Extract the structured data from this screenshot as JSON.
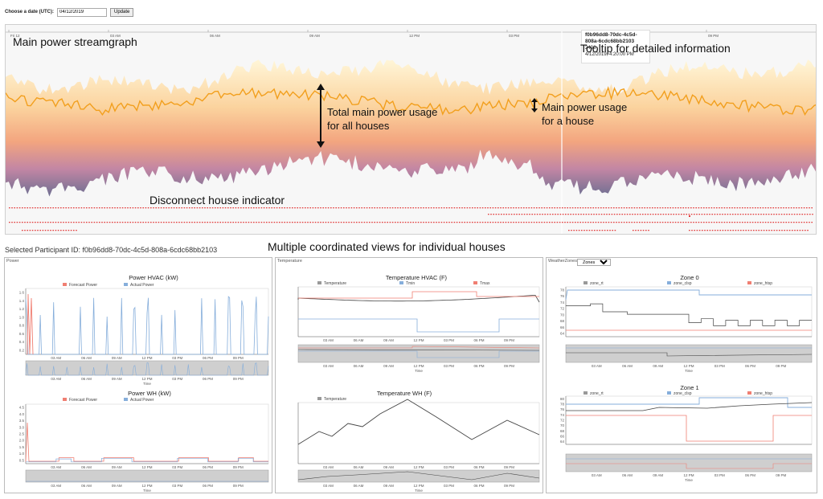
{
  "date_control": {
    "label": "Choose a date (UTC):",
    "value": "04/12/2019",
    "update_label": "Update"
  },
  "streamgraph": {
    "axis_ticks": [
      "Fri 12",
      "03 AM",
      "06 AM",
      "09 AM",
      "12 PM",
      "03 PM",
      "06 PM",
      "09 PM"
    ],
    "colors": {
      "top": "#fff4d2",
      "mid": "#f6a878",
      "low": "#b27fa3",
      "base": "#6d6f90",
      "highlight": "#f29f1d",
      "disconnect": "#e23a3a"
    }
  },
  "tooltip": {
    "participant": "f0b96dd8-70dc-4c5d-808a-6cdc68bb2103",
    "value": "2496",
    "time": "4/12/2019, 4:20:00 PM"
  },
  "annotations": {
    "main_streamgraph": "Main power streamgraph",
    "tooltip": "Tooltip for detailed information",
    "total_power_1": "Total main power usage",
    "total_power_2": "for all houses",
    "house_power_1": "Main power usage",
    "house_power_2": "for a house",
    "disconnect": "Disconnect house indicator",
    "mcv": "Multiple coordinated views for individual houses"
  },
  "selected": {
    "label": "Selected Participant ID: f0b96dd8-70dc-4c5d-808a-6cdc68bb2103"
  },
  "panels": {
    "power": {
      "label": "Power",
      "hvac_title": "Power HVAC (kW)",
      "wh_title": "Power WH (kW)",
      "legend_forecast": "Forecast Power",
      "legend_actual": "Actual Power",
      "y_ticks_hvac": [
        "1.6",
        "1.4",
        "1.2",
        "1.0",
        "0.8",
        "0.6",
        "0.4",
        "0.2"
      ],
      "y_ticks_wh": [
        "4.5",
        "4.0",
        "3.5",
        "3.0",
        "2.5",
        "2.0",
        "1.5",
        "1.0",
        "0.5"
      ]
    },
    "temperature": {
      "label": "Temperature",
      "hvac_title": "Temperature HVAC (F)",
      "wh_title": "Temperature WH (F)",
      "legend_temp": "Temperature",
      "legend_tmin": "Tmin",
      "legend_tmax": "Tmax"
    },
    "zones": {
      "label": "WeatherZones",
      "select_value": "Zones",
      "zone0_title": "Zone 0",
      "zone1_title": "Zone 1",
      "legend_rt": "zone_rt",
      "legend_clsp": "zone_clsp",
      "legend_htsp": "zone_htsp",
      "y_ticks_zone0": [
        "78",
        "76",
        "74",
        "72",
        "70",
        "68",
        "66",
        "64"
      ],
      "y_ticks_zone1": [
        "80",
        "78",
        "76",
        "74",
        "72",
        "70",
        "68",
        "66",
        "64"
      ]
    },
    "x_ticks": [
      "03 AM",
      "06 AM",
      "09 AM",
      "12 PM",
      "03 PM",
      "06 PM",
      "09 PM"
    ],
    "x_label": "Time"
  }
}
